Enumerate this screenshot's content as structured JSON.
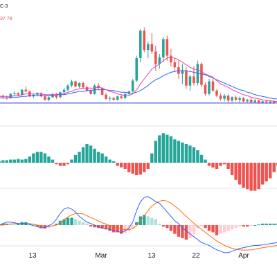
{
  "header": {
    "symbol_fragment": "C·3",
    "price_fragment": "37.78"
  },
  "colors": {
    "up": "#26a69a",
    "down": "#ef5350",
    "ma_short": "#f23da6",
    "ma_long": "#2962ff",
    "hline": "#6f6fe0",
    "hist_up": "#26a69a",
    "hist_down": "#ef5350",
    "hist_up_light": "#b2dfdb",
    "hist_down_light": "#ffcdd2",
    "macd_line": "#2962ff",
    "signal_line": "#ff6d00"
  },
  "chart_data": [
    {
      "type": "candlestick",
      "panel": "price",
      "grid": false,
      "ylim": [
        0,
        100
      ],
      "hline": 1,
      "candles": [
        [
          8,
          12,
          6,
          10
        ],
        [
          10,
          11,
          7,
          8
        ],
        [
          8,
          10,
          5,
          7
        ],
        [
          7,
          13,
          6,
          12
        ],
        [
          12,
          15,
          10,
          13
        ],
        [
          13,
          14,
          9,
          11
        ],
        [
          11,
          18,
          10,
          17
        ],
        [
          17,
          21,
          14,
          15
        ],
        [
          15,
          16,
          8,
          9
        ],
        [
          9,
          12,
          7,
          11
        ],
        [
          11,
          14,
          9,
          13
        ],
        [
          13,
          14,
          8,
          9
        ],
        [
          9,
          10,
          4,
          5
        ],
        [
          5,
          9,
          3,
          8
        ],
        [
          8,
          13,
          7,
          12
        ],
        [
          12,
          13,
          6,
          8
        ],
        [
          8,
          15,
          7,
          14
        ],
        [
          14,
          19,
          12,
          17
        ],
        [
          17,
          24,
          15,
          22
        ],
        [
          22,
          29,
          20,
          27
        ],
        [
          27,
          28,
          20,
          21
        ],
        [
          21,
          26,
          19,
          25
        ],
        [
          25,
          27,
          18,
          20
        ],
        [
          20,
          22,
          15,
          16
        ],
        [
          16,
          17,
          11,
          12
        ],
        [
          12,
          24,
          11,
          22
        ],
        [
          22,
          25,
          17,
          19
        ],
        [
          19,
          20,
          10,
          11
        ],
        [
          11,
          13,
          5,
          6
        ],
        [
          6,
          9,
          3,
          7
        ],
        [
          7,
          8,
          4,
          5
        ],
        [
          5,
          10,
          4,
          9
        ],
        [
          9,
          11,
          6,
          7
        ],
        [
          7,
          13,
          6,
          12
        ],
        [
          12,
          16,
          10,
          15
        ],
        [
          15,
          30,
          14,
          28
        ],
        [
          28,
          58,
          26,
          55
        ],
        [
          55,
          90,
          50,
          88
        ],
        [
          88,
          92,
          62,
          65
        ],
        [
          65,
          75,
          55,
          72
        ],
        [
          72,
          85,
          60,
          63
        ],
        [
          63,
          70,
          40,
          48
        ],
        [
          48,
          60,
          42,
          56
        ],
        [
          56,
          80,
          50,
          78
        ],
        [
          78,
          82,
          52,
          58
        ],
        [
          58,
          66,
          45,
          50
        ],
        [
          50,
          55,
          38,
          44
        ],
        [
          44,
          52,
          30,
          36
        ],
        [
          36,
          48,
          24,
          40
        ],
        [
          40,
          44,
          18,
          22
        ],
        [
          22,
          35,
          16,
          33
        ],
        [
          33,
          45,
          22,
          25
        ],
        [
          25,
          52,
          22,
          48
        ],
        [
          48,
          50,
          20,
          23
        ],
        [
          23,
          26,
          10,
          12
        ],
        [
          12,
          30,
          10,
          27
        ],
        [
          27,
          30,
          14,
          16
        ],
        [
          16,
          18,
          8,
          10
        ],
        [
          10,
          13,
          4,
          6
        ],
        [
          6,
          12,
          3,
          10
        ],
        [
          10,
          12,
          2,
          4
        ],
        [
          4,
          9,
          2,
          8
        ],
        [
          8,
          10,
          3,
          5
        ],
        [
          5,
          9,
          1,
          7
        ],
        [
          7,
          8,
          2,
          3
        ],
        [
          3,
          6,
          1,
          5
        ],
        [
          5,
          7,
          1,
          2
        ],
        [
          2,
          6,
          1,
          4
        ],
        [
          4,
          5,
          0,
          1
        ],
        [
          1,
          4,
          0,
          3
        ],
        [
          3,
          5,
          0,
          2
        ],
        [
          2,
          4,
          0,
          3
        ],
        [
          3,
          4,
          0,
          1
        ],
        [
          1,
          3,
          0,
          2
        ]
      ],
      "ma_short": [
        9,
        9,
        9,
        9,
        10,
        10,
        11,
        12,
        12,
        12,
        12,
        12,
        11,
        11,
        11,
        11,
        12,
        12,
        14,
        15,
        17,
        18,
        19,
        19,
        19,
        19,
        20,
        19,
        17,
        15,
        14,
        12,
        11,
        10,
        10,
        12,
        17,
        24,
        30,
        36,
        42,
        45,
        48,
        52,
        55,
        56,
        55,
        53,
        50,
        47,
        44,
        42,
        41,
        39,
        36,
        34,
        32,
        28,
        24,
        22,
        20,
        17,
        15,
        13,
        11,
        10,
        8,
        7,
        6,
        5,
        4,
        4,
        3,
        3
      ],
      "ma_long": [
        7,
        7,
        7,
        8,
        8,
        8,
        9,
        9,
        10,
        10,
        10,
        10,
        10,
        10,
        10,
        11,
        11,
        11,
        12,
        13,
        14,
        15,
        15,
        16,
        16,
        17,
        17,
        17,
        17,
        16,
        16,
        15,
        14,
        14,
        13,
        13,
        14,
        16,
        19,
        22,
        26,
        29,
        31,
        34,
        36,
        38,
        39,
        40,
        40,
        40,
        39,
        38,
        37,
        36,
        35,
        33,
        31,
        29,
        27,
        25,
        23,
        21,
        19,
        17,
        16,
        14,
        13,
        11,
        10,
        9,
        8,
        7,
        6,
        6
      ]
    },
    {
      "type": "histogram",
      "panel": "oscillator",
      "grid": false,
      "ylim": [
        -1,
        1
      ],
      "values": [
        0.05,
        0.08,
        0.08,
        0.1,
        0.1,
        0.12,
        0.1,
        0.12,
        0.2,
        0.3,
        0.35,
        0.35,
        0.3,
        0.2,
        0.1,
        -0.05,
        -0.1,
        -0.1,
        -0.05,
        0.1,
        0.25,
        0.35,
        0.5,
        0.6,
        0.55,
        0.45,
        0.35,
        0.3,
        0.2,
        0.1,
        0.05,
        -0.1,
        -0.15,
        -0.2,
        -0.3,
        -0.35,
        -0.4,
        -0.38,
        -0.3,
        -0.2,
        0.3,
        0.7,
        0.88,
        0.95,
        0.9,
        0.85,
        0.75,
        0.7,
        0.65,
        0.6,
        0.55,
        0.5,
        0.4,
        0.25,
        0.1,
        -0.1,
        -0.15,
        -0.2,
        -0.1,
        -0.05,
        -0.2,
        -0.4,
        -0.55,
        -0.7,
        -0.8,
        -0.85,
        -0.9,
        -0.9,
        -0.85,
        -0.7,
        -0.6,
        -0.5,
        -0.3,
        -0.1
      ]
    },
    {
      "type": "macd",
      "panel": "macd",
      "grid": false,
      "ylim": [
        -1,
        1
      ],
      "histogram": [
        0.02,
        0.05,
        0.05,
        0.03,
        0.02,
        0.05,
        0.1,
        0.1,
        0.05,
        0.02,
        -0.05,
        -0.1,
        -0.12,
        -0.1,
        -0.05,
        0.05,
        0.15,
        0.2,
        0.25,
        0.25,
        0.2,
        0.15,
        0.1,
        0.05,
        -0.05,
        -0.08,
        -0.1,
        -0.12,
        -0.15,
        -0.2,
        -0.25,
        -0.25,
        -0.3,
        -0.28,
        -0.2,
        -0.1,
        0.1,
        0.3,
        0.35,
        0.3,
        0.25,
        0.2,
        0.05,
        -0.05,
        -0.1,
        -0.2,
        -0.3,
        -0.4,
        -0.45,
        -0.5,
        -0.45,
        -0.3,
        -0.1,
        -0.05,
        -0.1,
        -0.2,
        -0.25,
        -0.35,
        -0.3,
        -0.25,
        -0.2,
        -0.15,
        -0.1,
        -0.05,
        -0.05,
        -0.05,
        -0.02,
        0.0,
        0.02,
        0.05,
        0.05,
        0.05,
        0.05,
        0.05
      ],
      "macd": [
        0.0,
        0.05,
        0.1,
        0.1,
        0.08,
        0.05,
        0.05,
        0.05,
        0.02,
        -0.02,
        -0.05,
        -0.1,
        -0.08,
        -0.02,
        0.05,
        0.2,
        0.4,
        0.55,
        0.6,
        0.55,
        0.45,
        0.3,
        0.2,
        0.1,
        0.05,
        0.0,
        -0.05,
        -0.1,
        -0.12,
        -0.15,
        -0.18,
        -0.22,
        -0.25,
        -0.2,
        -0.1,
        0.1,
        0.5,
        0.8,
        0.95,
        0.98,
        0.9,
        0.8,
        0.75,
        0.6,
        0.45,
        0.3,
        0.15,
        0.05,
        -0.1,
        -0.2,
        -0.3,
        -0.4,
        -0.5,
        -0.6,
        -0.65,
        -0.7,
        -0.78,
        -0.85,
        -0.9,
        -0.95,
        -0.95,
        -0.9,
        -0.85,
        -0.8,
        -0.78,
        -0.75,
        -0.72,
        -0.7,
        -0.7,
        -0.68,
        -0.66,
        -0.64,
        -0.62,
        -0.6
      ],
      "signal": [
        0.0,
        0.0,
        0.02,
        0.04,
        0.05,
        0.05,
        0.05,
        0.05,
        0.05,
        0.03,
        0.0,
        -0.02,
        -0.05,
        -0.05,
        -0.03,
        0.0,
        0.08,
        0.18,
        0.28,
        0.35,
        0.4,
        0.4,
        0.38,
        0.32,
        0.26,
        0.2,
        0.14,
        0.08,
        0.03,
        -0.02,
        -0.06,
        -0.1,
        -0.14,
        -0.16,
        -0.16,
        -0.12,
        -0.02,
        0.15,
        0.32,
        0.5,
        0.65,
        0.75,
        0.82,
        0.85,
        0.82,
        0.75,
        0.65,
        0.55,
        0.42,
        0.3,
        0.18,
        0.06,
        -0.05,
        -0.15,
        -0.25,
        -0.35,
        -0.45,
        -0.55,
        -0.62,
        -0.7,
        -0.75,
        -0.8,
        -0.83,
        -0.85,
        -0.86,
        -0.86,
        -0.85,
        -0.83,
        -0.8,
        -0.78,
        -0.76,
        -0.74,
        -0.72,
        -0.7
      ],
      "x_tick_labels": [
        "13",
        "Mar",
        "13",
        "22",
        "Apr"
      ]
    }
  ]
}
